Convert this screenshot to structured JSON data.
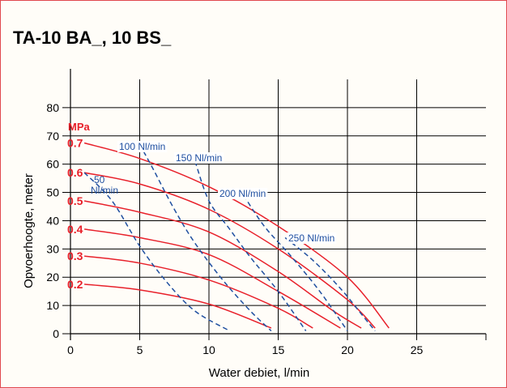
{
  "title": "TA-10 BA_, 10 BS_",
  "colors": {
    "pressure": "#e8202a",
    "air": "#1f4fa0",
    "frame": "#e0494e",
    "grid": "#000000"
  },
  "chart_data": {
    "type": "line",
    "xlabel": "Water debiet, l/min",
    "ylabel": "Opvoerhoogte, meter",
    "xlim": [
      0,
      30
    ],
    "ylim": [
      0,
      90
    ],
    "x_ticks": [
      0,
      5,
      10,
      15,
      20,
      25
    ],
    "y_ticks": [
      0,
      10,
      20,
      30,
      40,
      50,
      60,
      70,
      80
    ],
    "grid": true,
    "pressure_unit": "MPa",
    "pressure_series": [
      {
        "name": "0.7",
        "points": [
          [
            1,
            67.5
          ],
          [
            5,
            62
          ],
          [
            10,
            52
          ],
          [
            15,
            38
          ],
          [
            20,
            20
          ],
          [
            23,
            2
          ]
        ]
      },
      {
        "name": "0.6",
        "points": [
          [
            1,
            57
          ],
          [
            5,
            53
          ],
          [
            10,
            44
          ],
          [
            15,
            30
          ],
          [
            20,
            12
          ],
          [
            22,
            2
          ]
        ]
      },
      {
        "name": "0.5",
        "points": [
          [
            1,
            47
          ],
          [
            5,
            43
          ],
          [
            10,
            36
          ],
          [
            15,
            22
          ],
          [
            19,
            8
          ],
          [
            21,
            2
          ]
        ]
      },
      {
        "name": "0.4",
        "points": [
          [
            1,
            37
          ],
          [
            5,
            34
          ],
          [
            10,
            28
          ],
          [
            15,
            15
          ],
          [
            19.5,
            2
          ]
        ]
      },
      {
        "name": "0.3",
        "points": [
          [
            1,
            27.5
          ],
          [
            5,
            25
          ],
          [
            10,
            19
          ],
          [
            15,
            9
          ],
          [
            17.5,
            2
          ]
        ]
      },
      {
        "name": "0.2",
        "points": [
          [
            1,
            17.5
          ],
          [
            5,
            15.5
          ],
          [
            10,
            10.5
          ],
          [
            14.5,
            2
          ]
        ]
      }
    ],
    "air_series": [
      {
        "name": "50 Nl/min",
        "points": [
          [
            1,
            57
          ],
          [
            3,
            47
          ],
          [
            5,
            31
          ],
          [
            7,
            18
          ],
          [
            9,
            8
          ],
          [
            11.5,
            1
          ]
        ]
      },
      {
        "name": "100 Nl/min",
        "points": [
          [
            5,
            67
          ],
          [
            6,
            58
          ],
          [
            7.5,
            44
          ],
          [
            9,
            32
          ],
          [
            11,
            19
          ],
          [
            13,
            8
          ],
          [
            14.5,
            1
          ]
        ]
      },
      {
        "name": "150 Nl/min",
        "points": [
          [
            9,
            61
          ],
          [
            10,
            47
          ],
          [
            11.5,
            37
          ],
          [
            13,
            27
          ],
          [
            15,
            15
          ],
          [
            17,
            1
          ]
        ]
      },
      {
        "name": "200 Nl/min",
        "points": [
          [
            12.5,
            49
          ],
          [
            14,
            38
          ],
          [
            16,
            27
          ],
          [
            18,
            15
          ],
          [
            20,
            1
          ]
        ]
      },
      {
        "name": "250 Nl/min",
        "points": [
          [
            15.5,
            34
          ],
          [
            17.5,
            26
          ],
          [
            19.5,
            16
          ],
          [
            21,
            7
          ],
          [
            22,
            1
          ]
        ]
      }
    ]
  }
}
